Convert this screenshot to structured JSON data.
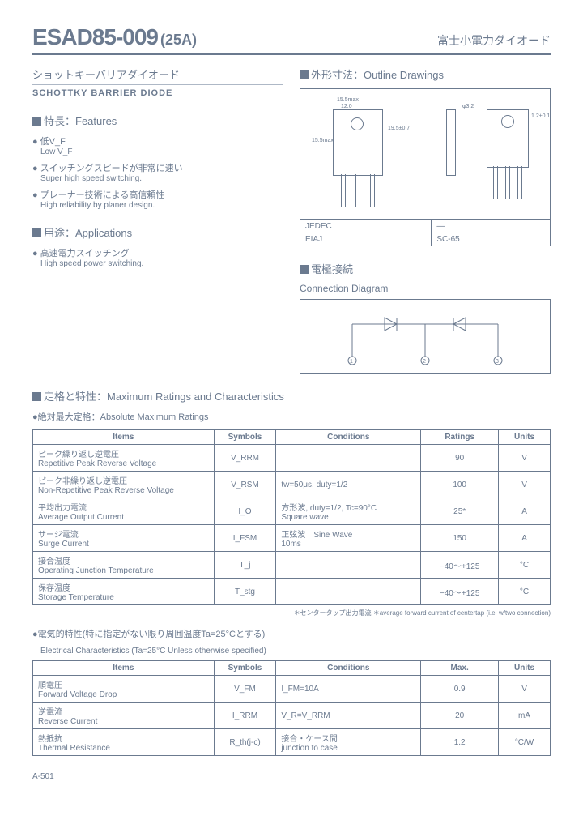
{
  "header": {
    "part_number": "ESAD85-009",
    "suffix": "(25A)",
    "brand": "富士小電力ダイオード"
  },
  "subtitle": {
    "jp": "ショットキーバリアダイオード",
    "en": "SCHOTTKY BARRIER DIODE"
  },
  "outline": {
    "title": "外形寸法：Outline Drawings",
    "dims": {
      "w1": "15.5max",
      "w2": "12.0",
      "w3": "10.0",
      "h1": "19.5±0.7",
      "pitch": "2.2",
      "lead": "18.5",
      "hole": "φ3.2",
      "thick1": "1.2±0.1",
      "thick2": "0.5"
    },
    "pkg_table": {
      "rows": [
        [
          "JEDEC",
          "—"
        ],
        [
          "EIAJ",
          "SC-65"
        ]
      ]
    }
  },
  "connection": {
    "title": "電極接続",
    "subtitle": "Connection Diagram",
    "pins": [
      "1",
      "2",
      "3"
    ]
  },
  "features": {
    "title": "特長：Features",
    "items": [
      {
        "jp": "低V_F",
        "en": "Low V_F"
      },
      {
        "jp": "スイッチングスピードが非常に速い",
        "en": "Super high speed switching."
      },
      {
        "jp": "プレーナー技術による高信頼性",
        "en": "High reliability by planer design."
      }
    ]
  },
  "applications": {
    "title": "用途：Applications",
    "items": [
      {
        "jp": "高速電力スイッチング",
        "en": "High speed power switching."
      }
    ]
  },
  "ratings": {
    "title": "定格と特性：Maximum Ratings and Characteristics",
    "subtitle": "絶対最大定格：Absolute Maximum Ratings",
    "columns": [
      "Items",
      "Symbols",
      "Conditions",
      "Ratings",
      "Units"
    ],
    "rows": [
      {
        "jp": "ピーク繰り返し逆電圧",
        "en": "Repetitive Peak Reverse Voltage",
        "symbol": "V_RRM",
        "cond": "",
        "rating": "90",
        "unit": "V"
      },
      {
        "jp": "ピーク非繰り返し逆電圧",
        "en": "Non-Repetitive Peak Reverse Voltage",
        "symbol": "V_RSM",
        "cond": "tw=50μs, duty=1/2",
        "rating": "100",
        "unit": "V"
      },
      {
        "jp": "平均出力電流",
        "en": "Average Output Current",
        "symbol": "I_O",
        "cond": "方形波, duty=1/2, Tc=90°C\nSquare wave",
        "rating": "25*",
        "unit": "A"
      },
      {
        "jp": "サージ電流",
        "en": "Surge Current",
        "symbol": "I_FSM",
        "cond": "正弦波　Sine Wave\n10ms",
        "rating": "150",
        "unit": "A"
      },
      {
        "jp": "接合温度",
        "en": "Operating Junction Temperature",
        "symbol": "T_j",
        "cond": "",
        "rating": "−40～+125",
        "unit": "°C"
      },
      {
        "jp": "保存温度",
        "en": "Storage Temperature",
        "symbol": "T_stg",
        "cond": "",
        "rating": "−40～+125",
        "unit": "°C"
      }
    ],
    "footnote": "＊センタータップ出力電流\n＊average forward current of centertap (i.e. w/two connection)"
  },
  "electrical": {
    "title": "電気的特性(特に指定がない限り周囲温度Ta=25°Cとする)",
    "subtitle": "Electrical Characteristics (Ta=25°C Unless otherwise specified)",
    "columns": [
      "Items",
      "Symbols",
      "Conditions",
      "Max.",
      "Units"
    ],
    "rows": [
      {
        "jp": "順電圧",
        "en": "Forward Voltage Drop",
        "symbol": "V_FM",
        "cond": "I_FM=10A",
        "max": "0.9",
        "unit": "V"
      },
      {
        "jp": "逆電流",
        "en": "Reverse Current",
        "symbol": "I_RRM",
        "cond": "V_R=V_RRM",
        "max": "20",
        "unit": "mA"
      },
      {
        "jp": "熱抵抗",
        "en": "Thermal Resistance",
        "symbol": "R_th(j-c)",
        "cond": "接合・ケース間\njunction to case",
        "max": "1.2",
        "unit": "°C/W"
      }
    ]
  },
  "page": "A-501"
}
